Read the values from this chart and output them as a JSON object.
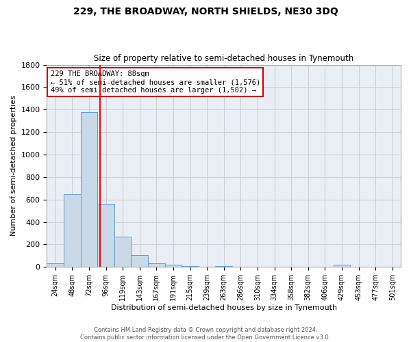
{
  "title": "229, THE BROADWAY, NORTH SHIELDS, NE30 3DQ",
  "subtitle": "Size of property relative to semi-detached houses in Tynemouth",
  "xlabel": "Distribution of semi-detached houses by size in Tynemouth",
  "ylabel": "Number of semi-detached properties",
  "bar_labels": [
    "24sqm",
    "48sqm",
    "72sqm",
    "96sqm",
    "119sqm",
    "143sqm",
    "167sqm",
    "191sqm",
    "215sqm",
    "239sqm",
    "263sqm",
    "286sqm",
    "310sqm",
    "334sqm",
    "358sqm",
    "382sqm",
    "406sqm",
    "429sqm",
    "453sqm",
    "477sqm",
    "501sqm"
  ],
  "bar_values": [
    35,
    650,
    1375,
    565,
    270,
    105,
    35,
    20,
    10,
    0,
    10,
    0,
    0,
    0,
    0,
    0,
    0,
    20,
    0,
    0,
    5
  ],
  "bar_color": "#c9d9e8",
  "bar_edgecolor": "#5b9bd5",
  "vline_x": 3,
  "vline_color": "red",
  "annotation_line1": "229 THE BROADWAY: 88sqm",
  "annotation_line2": "← 51% of semi-detached houses are smaller (1,576)",
  "annotation_line3": "49% of semi-detached houses are larger (1,502) →",
  "annotation_box_edgecolor": "#cc0000",
  "annotation_box_facecolor": "white",
  "ylim": [
    0,
    1800
  ],
  "yticks": [
    0,
    200,
    400,
    600,
    800,
    1000,
    1200,
    1400,
    1600,
    1800
  ],
  "grid_color": "#cccccc",
  "bg_color": "#e8eef4",
  "footer_text": "Contains HM Land Registry data © Crown copyright and database right 2024.\nContains public sector information licensed under the Open Government Licence v3.0.",
  "n_bars": 21
}
